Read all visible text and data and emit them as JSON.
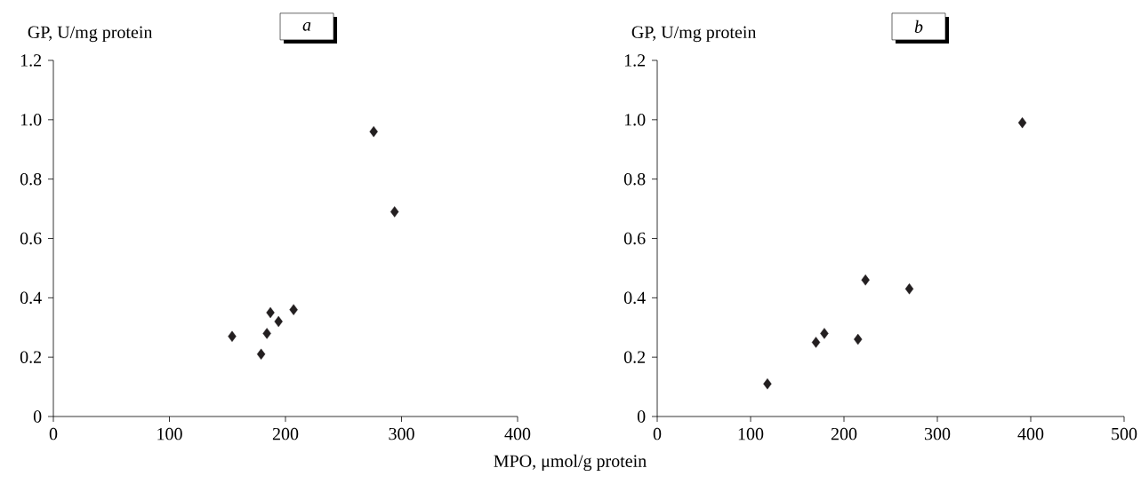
{
  "chart_data": [
    {
      "type": "scatter",
      "title": "a",
      "xlabel": "MPO, μmol/g protein",
      "ylabel": "GP, U/mg protein",
      "marker": "diamond",
      "color": "#231f20",
      "x": [
        154,
        179,
        184,
        187,
        194,
        207,
        276,
        294
      ],
      "values": [
        0.27,
        0.21,
        0.28,
        0.35,
        0.32,
        0.36,
        0.96,
        0.69
      ],
      "xlim": [
        0,
        400
      ],
      "ylim": [
        0,
        1.2
      ],
      "xticks": [
        0,
        100,
        200,
        300,
        400
      ],
      "yticks": [
        0,
        0.2,
        0.4,
        0.6,
        0.8,
        {
          "value": 1,
          "label": "1.0"
        },
        1.2
      ]
    },
    {
      "type": "scatter",
      "title": "b",
      "ylabel": "GP, U/mg protein",
      "marker": "diamond",
      "color": "#231f20",
      "x": [
        118,
        170,
        179,
        215,
        223,
        270,
        391
      ],
      "values": [
        0.11,
        0.25,
        0.28,
        0.26,
        0.46,
        0.43,
        0.99
      ],
      "xlim": [
        0,
        500
      ],
      "ylim": [
        0,
        1.2
      ],
      "xticks": [
        0,
        100,
        200,
        300,
        400,
        500
      ],
      "yticks": [
        0,
        0.2,
        0.4,
        0.6,
        0.8,
        {
          "value": 1,
          "label": "1.0"
        },
        1.2
      ]
    }
  ]
}
